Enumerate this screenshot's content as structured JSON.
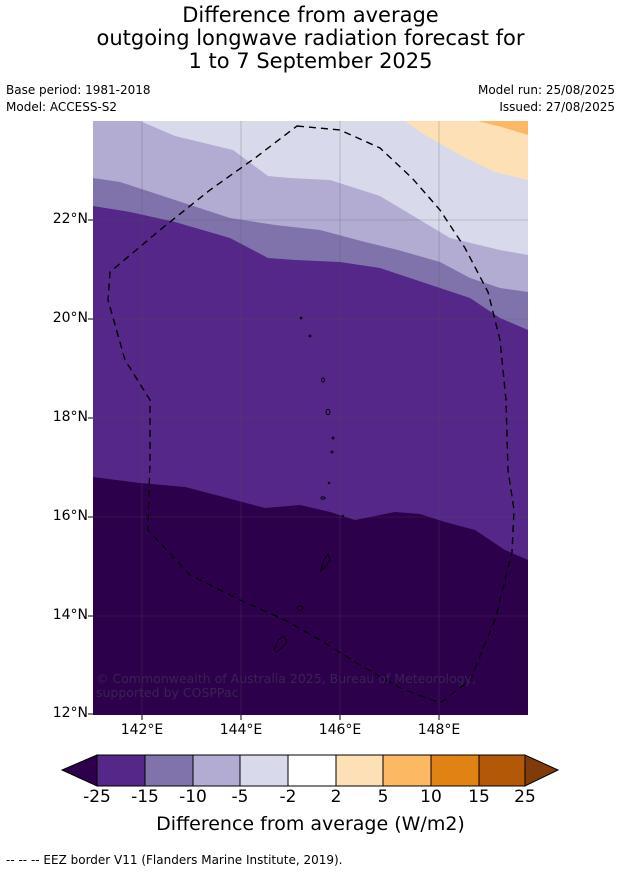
{
  "title_lines": [
    "Difference from average",
    "outgoing longwave radiation forecast for",
    "1 to 7 September 2025"
  ],
  "meta": {
    "base_period": "Base period: 1981-2018",
    "model": "Model: ACCESS-S2",
    "model_run": "Model run: 25/08/2025",
    "issued": "Issued: 27/08/2025"
  },
  "map": {
    "lat_labels": [
      "22°N",
      "20°N",
      "18°N",
      "16°N",
      "14°N",
      "12°N"
    ],
    "lon_labels": [
      "142°E",
      "144°E",
      "146°E",
      "148°E"
    ],
    "credit": "© Commonwealth of Australia 2025, Bureau of Meteorology, supported by COSPPac"
  },
  "colorbar": {
    "ticks": [
      "-25",
      "-15",
      "-10",
      "-5",
      "-2",
      "2",
      "5",
      "10",
      "15",
      "25"
    ],
    "colors": [
      "#2d004b",
      "#542788",
      "#8073ac",
      "#b2abd2",
      "#d8daeb",
      "#ffffff",
      "#fee0b6",
      "#fdb863",
      "#e08214",
      "#b35806",
      "#7f3b08"
    ],
    "label": "Difference from average (W/m2)"
  },
  "footer": "--  --  -- EEZ border V11 (Flanders Marine Institute, 2019)."
}
